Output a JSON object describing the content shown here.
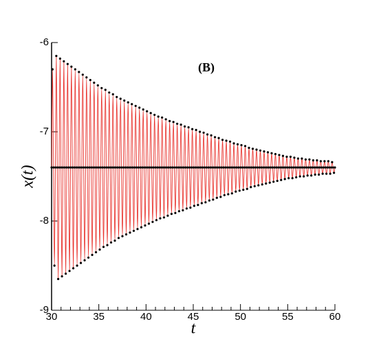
{
  "chart_data": {
    "type": "line",
    "title": "(B)",
    "x_label": "t",
    "y_label": "x(t)",
    "xlim": [
      30,
      60
    ],
    "xticks": [
      30,
      35,
      40,
      45,
      50,
      55,
      60
    ],
    "ylim": [
      -9,
      -6
    ],
    "yticks": [
      -9,
      -8,
      -7,
      -6
    ],
    "x": [
      30,
      30.1,
      30.2,
      30.3,
      30.4,
      30.5,
      30.6,
      30.7,
      30.8,
      30.9,
      31,
      31.1,
      31.2,
      31.3,
      31.4,
      31.5,
      31.6,
      31.7,
      31.8,
      31.9,
      32,
      32.1,
      32.2,
      32.3,
      32.4,
      32.5,
      32.6,
      32.7,
      32.8,
      32.9,
      33,
      33.1,
      33.2,
      33.3,
      33.4,
      33.5,
      33.6,
      33.7,
      33.8,
      33.9,
      34,
      34.1,
      34.2,
      34.3,
      34.4,
      34.5,
      34.6,
      34.7,
      34.8,
      34.9,
      35,
      35.1,
      35.2,
      35.3,
      35.4,
      35.5,
      35.6,
      35.7,
      35.8,
      35.9,
      36,
      36.1,
      36.2,
      36.3,
      36.4,
      36.5,
      36.6,
      36.7,
      36.8,
      36.9,
      37,
      37.1,
      37.2,
      37.3,
      37.4,
      37.5,
      37.6,
      37.7,
      37.8,
      37.9,
      38,
      38.1,
      38.2,
      38.3,
      38.4,
      38.5,
      38.6,
      38.7,
      38.8,
      38.9,
      39,
      39.1,
      39.2,
      39.3,
      39.4,
      39.5,
      39.6,
      39.7,
      39.8,
      39.9,
      40,
      40.1,
      40.2,
      40.3,
      40.4,
      40.5,
      40.6,
      40.7,
      40.8,
      40.9,
      41,
      41.1,
      41.2,
      41.3,
      41.4,
      41.5,
      41.6,
      41.7,
      41.8,
      41.9,
      42,
      42.1,
      42.2,
      42.3,
      42.4,
      42.5,
      42.6,
      42.7,
      42.8,
      42.9,
      43,
      43.1,
      43.2,
      43.3,
      43.4,
      43.5,
      43.6,
      43.7,
      43.8,
      43.9,
      44,
      44.1,
      44.2,
      44.3,
      44.4,
      44.5,
      44.6,
      44.7,
      44.8,
      44.9,
      45,
      45.1,
      45.2,
      45.3,
      45.4,
      45.5,
      45.6,
      45.7,
      45.8,
      45.9,
      46,
      46.1,
      46.2,
      46.3,
      46.4,
      46.5,
      46.6,
      46.7,
      46.8,
      46.9,
      47,
      47.1,
      47.2,
      47.3,
      47.4,
      47.5,
      47.6,
      47.7,
      47.8,
      47.9,
      48,
      48.1,
      48.2,
      48.3,
      48.4,
      48.5,
      48.6,
      48.7,
      48.8,
      48.9,
      49,
      49.1,
      49.2,
      49.3,
      49.4,
      49.5,
      49.6,
      49.7,
      49.8,
      49.9,
      50,
      50.1,
      50.2,
      50.3,
      50.4,
      50.5,
      50.6,
      50.7,
      50.8,
      50.9,
      51,
      51.1,
      51.2,
      51.3,
      51.4,
      51.5,
      51.6,
      51.7,
      51.8,
      51.9,
      52,
      52.1,
      52.2,
      52.3,
      52.4,
      52.5,
      52.6,
      52.7,
      52.8,
      52.9,
      53,
      53.1,
      53.2,
      53.3,
      53.4,
      53.5,
      53.6,
      53.7,
      53.8,
      53.9,
      54,
      54.1,
      54.2,
      54.3,
      54.4,
      54.5,
      54.6,
      54.7,
      54.8,
      54.9,
      55,
      55.1,
      55.2,
      55.3,
      55.4,
      55.5,
      55.6,
      55.7,
      55.8,
      55.9,
      56,
      56.1,
      56.2,
      56.3,
      56.4,
      56.5,
      56.6,
      56.7,
      56.8,
      56.9,
      57,
      57.1,
      57.2,
      57.3,
      57.4,
      57.5,
      57.6,
      57.7,
      57.8,
      57.9,
      58,
      58.1,
      58.2,
      58.3,
      58.4,
      58.5,
      58.6,
      58.7,
      58.8,
      58.9,
      59,
      59.1,
      59.2,
      59.3,
      59.4,
      59.5,
      59.6,
      59.7,
      59.8,
      59.9,
      60
    ],
    "series": [
      {
        "color": "#e8302a",
        "marker_color": "#000000",
        "values": [
          -7.4,
          -6.3,
          -7.4,
          -8.5,
          -7.4,
          -6.15,
          -7.4,
          -8.65,
          -7.4,
          -6.18,
          -7.4,
          -8.62,
          -7.4,
          -6.21,
          -7.4,
          -8.59,
          -7.4,
          -6.24,
          -7.4,
          -8.56,
          -7.4,
          -6.27,
          -7.4,
          -8.53,
          -7.4,
          -6.3,
          -7.4,
          -8.5,
          -7.4,
          -6.33,
          -7.4,
          -8.47,
          -7.4,
          -6.36,
          -7.4,
          -8.44,
          -7.4,
          -6.39,
          -7.4,
          -8.41,
          -7.4,
          -6.42,
          -7.4,
          -8.38,
          -7.4,
          -6.45,
          -7.4,
          -8.35,
          -7.4,
          -6.48,
          -7.4,
          -8.32,
          -7.4,
          -6.51,
          -7.4,
          -8.29,
          -7.4,
          -6.53,
          -7.4,
          -8.27,
          -7.4,
          -6.56,
          -7.4,
          -8.24,
          -7.4,
          -6.58,
          -7.4,
          -8.22,
          -7.4,
          -6.61,
          -7.4,
          -8.19,
          -7.4,
          -6.63,
          -7.4,
          -8.17,
          -7.4,
          -6.65,
          -7.4,
          -8.15,
          -7.4,
          -6.67,
          -7.4,
          -8.13,
          -7.4,
          -6.69,
          -7.4,
          -8.11,
          -7.4,
          -6.71,
          -7.4,
          -8.09,
          -7.4,
          -6.73,
          -7.4,
          -8.07,
          -7.4,
          -6.75,
          -7.4,
          -8.05,
          -7.4,
          -6.77,
          -7.4,
          -8.03,
          -7.4,
          -6.79,
          -7.4,
          -8.01,
          -7.4,
          -6.81,
          -7.4,
          -7.99,
          -7.4,
          -6.83,
          -7.4,
          -7.97,
          -7.4,
          -6.84,
          -7.4,
          -7.96,
          -7.4,
          -6.86,
          -7.4,
          -7.94,
          -7.4,
          -6.88,
          -7.4,
          -7.92,
          -7.4,
          -6.89,
          -7.4,
          -7.91,
          -7.4,
          -6.91,
          -7.4,
          -7.89,
          -7.4,
          -6.92,
          -7.4,
          -7.88,
          -7.4,
          -6.94,
          -7.4,
          -7.86,
          -7.4,
          -6.95,
          -7.4,
          -7.85,
          -7.4,
          -6.97,
          -7.4,
          -7.83,
          -7.4,
          -6.98,
          -7.4,
          -7.82,
          -7.4,
          -7.0,
          -7.4,
          -7.8,
          -7.4,
          -7.01,
          -7.4,
          -7.79,
          -7.4,
          -7.03,
          -7.4,
          -7.77,
          -7.4,
          -7.04,
          -7.4,
          -7.76,
          -7.4,
          -7.06,
          -7.4,
          -7.74,
          -7.4,
          -7.07,
          -7.4,
          -7.73,
          -7.4,
          -7.09,
          -7.4,
          -7.71,
          -7.4,
          -7.1,
          -7.4,
          -7.7,
          -7.4,
          -7.11,
          -7.4,
          -7.69,
          -7.4,
          -7.13,
          -7.4,
          -7.67,
          -7.4,
          -7.14,
          -7.4,
          -7.66,
          -7.4,
          -7.15,
          -7.4,
          -7.65,
          -7.4,
          -7.16,
          -7.4,
          -7.64,
          -7.4,
          -7.18,
          -7.4,
          -7.62,
          -7.4,
          -7.19,
          -7.4,
          -7.61,
          -7.4,
          -7.2,
          -7.4,
          -7.6,
          -7.4,
          -7.21,
          -7.4,
          -7.59,
          -7.4,
          -7.22,
          -7.4,
          -7.58,
          -7.4,
          -7.23,
          -7.4,
          -7.57,
          -7.4,
          -7.24,
          -7.4,
          -7.56,
          -7.4,
          -7.25,
          -7.4,
          -7.55,
          -7.4,
          -7.26,
          -7.4,
          -7.54,
          -7.4,
          -7.27,
          -7.4,
          -7.53,
          -7.4,
          -7.28,
          -7.4,
          -7.52,
          -7.4,
          -7.28,
          -7.4,
          -7.52,
          -7.4,
          -7.29,
          -7.4,
          -7.51,
          -7.4,
          -7.3,
          -7.4,
          -7.5,
          -7.4,
          -7.3,
          -7.4,
          -7.5,
          -7.4,
          -7.31,
          -7.4,
          -7.49,
          -7.4,
          -7.31,
          -7.4,
          -7.49,
          -7.4,
          -7.32,
          -7.4,
          -7.48,
          -7.4,
          -7.32,
          -7.4,
          -7.48,
          -7.4,
          -7.33,
          -7.4,
          -7.47,
          -7.4,
          -7.33,
          -7.4,
          -7.47,
          -7.4,
          -7.33,
          -7.4,
          -7.47,
          -7.4,
          -7.34,
          -7.4,
          -7.46,
          -7.4
        ]
      }
    ]
  }
}
